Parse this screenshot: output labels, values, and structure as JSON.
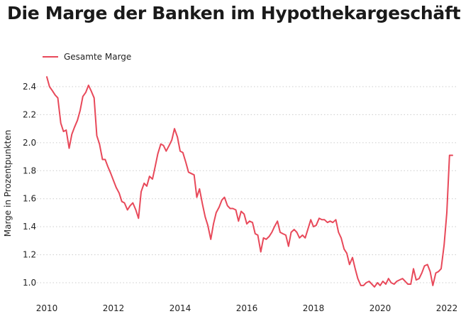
{
  "chart_data": {
    "type": "line",
    "title": "Die Marge der Banken im Hypothekargeschäft",
    "xlabel": "",
    "ylabel": "Marge in Prozentpunkten",
    "xlim": [
      2010,
      2022.2
    ],
    "ylim": [
      0.95,
      2.5
    ],
    "xticks": [
      "2010",
      "2012",
      "2014",
      "2016",
      "2018",
      "2020",
      "2022"
    ],
    "yticks": [
      "1.0",
      "1.2",
      "1.4",
      "1.6",
      "1.8",
      "2.0",
      "2.2",
      "2.4"
    ],
    "grid": "horizontal dotted",
    "legend_position": "top-left",
    "series": [
      {
        "name": "Gesamte Marge",
        "color": "#e8495a",
        "x": [
          2010.0,
          2010.08,
          2010.17,
          2010.25,
          2010.33,
          2010.42,
          2010.5,
          2010.58,
          2010.67,
          2010.75,
          2010.83,
          2010.92,
          2011.0,
          2011.08,
          2011.17,
          2011.25,
          2011.33,
          2011.42,
          2011.5,
          2011.58,
          2011.67,
          2011.75,
          2011.83,
          2011.92,
          2012.0,
          2012.08,
          2012.17,
          2012.25,
          2012.33,
          2012.42,
          2012.5,
          2012.58,
          2012.67,
          2012.75,
          2012.83,
          2012.92,
          2013.0,
          2013.08,
          2013.17,
          2013.25,
          2013.33,
          2013.42,
          2013.5,
          2013.58,
          2013.67,
          2013.75,
          2013.83,
          2013.92,
          2014.0,
          2014.08,
          2014.17,
          2014.25,
          2014.33,
          2014.42,
          2014.5,
          2014.58,
          2014.67,
          2014.75,
          2014.83,
          2014.92,
          2015.0,
          2015.08,
          2015.17,
          2015.25,
          2015.33,
          2015.42,
          2015.5,
          2015.58,
          2015.67,
          2015.75,
          2015.83,
          2015.92,
          2016.0,
          2016.08,
          2016.17,
          2016.25,
          2016.33,
          2016.42,
          2016.5,
          2016.58,
          2016.67,
          2016.75,
          2016.83,
          2016.92,
          2017.0,
          2017.08,
          2017.17,
          2017.25,
          2017.33,
          2017.42,
          2017.5,
          2017.58,
          2017.67,
          2017.75,
          2017.83,
          2017.92,
          2018.0,
          2018.08,
          2018.17,
          2018.25,
          2018.33,
          2018.42,
          2018.5,
          2018.58,
          2018.67,
          2018.75,
          2018.83,
          2018.92,
          2019.0,
          2019.08,
          2019.17,
          2019.25,
          2019.33,
          2019.42,
          2019.5,
          2019.58,
          2019.67,
          2019.75,
          2019.83,
          2019.92,
          2020.0,
          2020.08,
          2020.17,
          2020.25,
          2020.33,
          2020.42,
          2020.5,
          2020.58,
          2020.67,
          2020.75,
          2020.83,
          2020.92,
          2021.0,
          2021.08,
          2021.17,
          2021.25,
          2021.33,
          2021.42,
          2021.5,
          2021.58,
          2021.67,
          2021.75,
          2021.83,
          2021.92,
          2022.0,
          2022.08,
          2022.17
        ],
        "values": [
          2.47,
          2.4,
          2.37,
          2.34,
          2.32,
          2.14,
          2.08,
          2.09,
          1.96,
          2.06,
          2.11,
          2.16,
          2.23,
          2.33,
          2.36,
          2.41,
          2.37,
          2.32,
          2.05,
          1.99,
          1.88,
          1.88,
          1.83,
          1.78,
          1.73,
          1.68,
          1.64,
          1.58,
          1.57,
          1.52,
          1.55,
          1.57,
          1.52,
          1.46,
          1.65,
          1.71,
          1.69,
          1.76,
          1.74,
          1.83,
          1.92,
          1.99,
          1.98,
          1.94,
          1.98,
          2.02,
          2.1,
          2.04,
          1.94,
          1.93,
          1.86,
          1.79,
          1.78,
          1.77,
          1.61,
          1.67,
          1.56,
          1.47,
          1.41,
          1.31,
          1.42,
          1.5,
          1.54,
          1.59,
          1.61,
          1.55,
          1.53,
          1.53,
          1.52,
          1.44,
          1.51,
          1.49,
          1.42,
          1.44,
          1.43,
          1.35,
          1.34,
          1.22,
          1.32,
          1.31,
          1.33,
          1.36,
          1.4,
          1.44,
          1.36,
          1.35,
          1.34,
          1.26,
          1.36,
          1.38,
          1.36,
          1.32,
          1.34,
          1.32,
          1.38,
          1.45,
          1.4,
          1.41,
          1.46,
          1.45,
          1.45,
          1.43,
          1.44,
          1.43,
          1.45,
          1.36,
          1.32,
          1.24,
          1.21,
          1.13,
          1.18,
          1.1,
          1.03,
          0.98,
          0.98,
          1.0,
          1.01,
          0.99,
          0.97,
          1.0,
          0.98,
          1.01,
          0.99,
          1.03,
          1.0,
          0.99,
          1.01,
          1.02,
          1.03,
          1.01,
          0.99,
          0.99,
          1.1,
          1.02,
          1.03,
          1.07,
          1.12,
          1.13,
          1.08,
          0.98,
          1.07,
          1.08,
          1.1,
          1.27,
          1.5,
          1.91,
          1.91
        ]
      }
    ]
  }
}
